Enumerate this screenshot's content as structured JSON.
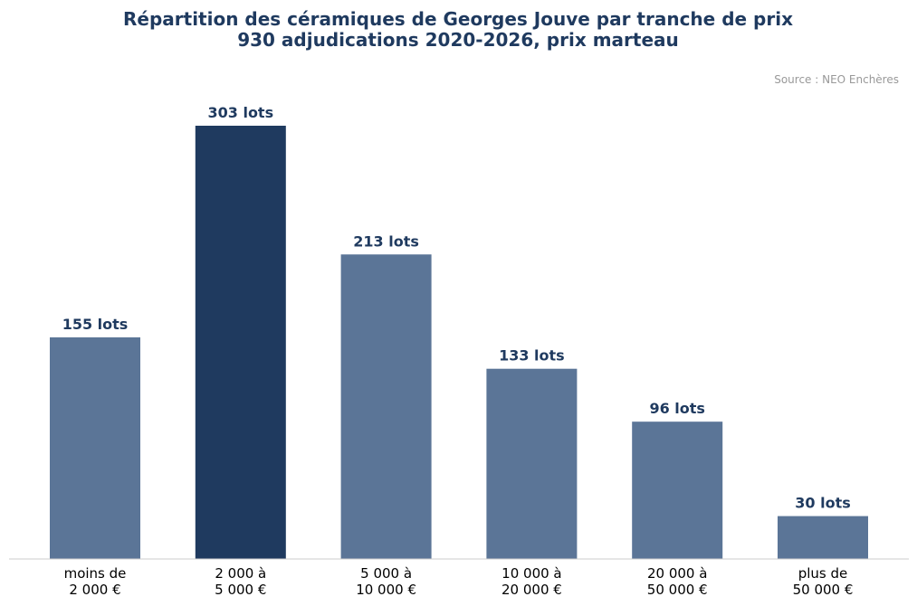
{
  "chart_data": {
    "type": "bar",
    "title_lines": [
      "Répartition des céramiques de Georges Jouve par tranche de prix",
      "930 adjudications 2020-2026, prix marteau"
    ],
    "source": "Source : NEO Enchères",
    "xlabel": "",
    "ylabel": "",
    "categories": [
      [
        "moins de",
        "2 000 €"
      ],
      [
        "2 000 à",
        "5 000 €"
      ],
      [
        "5 000 à",
        "10 000 €"
      ],
      [
        "10 000 à",
        "20 000 €"
      ],
      [
        "20 000 à",
        "50 000 €"
      ],
      [
        "plus de",
        "50 000 €"
      ]
    ],
    "values": [
      155,
      303,
      213,
      133,
      96,
      30
    ],
    "data_labels": [
      "155 lots",
      "303 lots",
      "213 lots",
      "133 lots",
      "96 lots",
      "30 lots"
    ],
    "ylim": [
      0,
      303
    ],
    "highlight_index": 1,
    "grid": false,
    "legend": "none",
    "colors": {
      "bar": "#5b7597",
      "bar_highlight": "#1f3a5f",
      "label": "#1f3a5f",
      "title": "#1f3a5f",
      "source": "#999999",
      "tick": "#000000",
      "axis": "#cccccc"
    }
  }
}
